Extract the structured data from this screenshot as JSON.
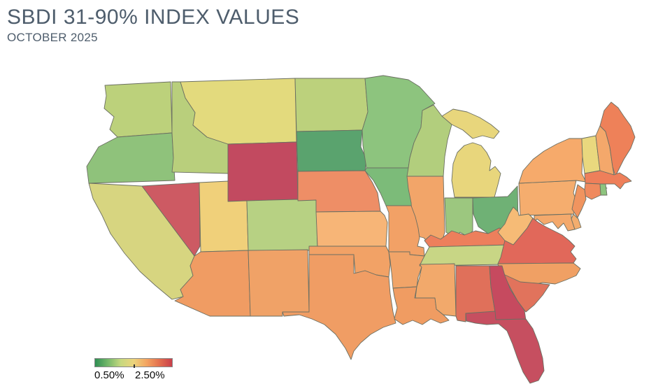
{
  "header": {
    "title": "SBDI 31-90% INDEX VALUES",
    "subtitle": "OCTOBER 2025",
    "title_color": "#4e5d6c"
  },
  "legend": {
    "min_label": "0.50%",
    "max_label": "2.50%",
    "gradient": [
      "#2f8e53",
      "#74b86a",
      "#c6d87f",
      "#ecd47c",
      "#f3a561",
      "#e3704f",
      "#c93f4a"
    ],
    "tick_position_pct": 50
  },
  "chart_data": {
    "type": "heatmap",
    "subtype": "us-state-choropleth",
    "title": "SBDI 31-90% INDEX VALUES",
    "subtitle": "OCTOBER 2025",
    "legend": {
      "min": "0.50%",
      "max": "2.50%",
      "position": "bottom-left"
    },
    "scale": {
      "min_pct": 0.5,
      "max_pct": 2.5,
      "low_color": "#2f8e53",
      "mid_color": "#ecd47c",
      "high_color": "#c93f4a"
    },
    "states": [
      {
        "abbr": "WA",
        "name": "Washington",
        "color": "#bcd17b",
        "value_est_pct": 1.25
      },
      {
        "abbr": "OR",
        "name": "Oregon",
        "color": "#8fc27b",
        "value_est_pct": 1.05
      },
      {
        "abbr": "CA",
        "name": "California",
        "color": "#d7d580",
        "value_est_pct": 1.45
      },
      {
        "abbr": "NV",
        "name": "Nevada",
        "color": "#cd5a63",
        "value_est_pct": 2.3
      },
      {
        "abbr": "ID",
        "name": "Idaho",
        "color": "#b9cf7c",
        "value_est_pct": 1.25
      },
      {
        "abbr": "MT",
        "name": "Montana",
        "color": "#e3da7d",
        "value_est_pct": 1.45
      },
      {
        "abbr": "WY",
        "name": "Wyoming",
        "color": "#c24a60",
        "value_est_pct": 2.45
      },
      {
        "abbr": "UT",
        "name": "Utah",
        "color": "#f0d07a",
        "value_est_pct": 1.55
      },
      {
        "abbr": "CO",
        "name": "Colorado",
        "color": "#b7d183",
        "value_est_pct": 1.25
      },
      {
        "abbr": "AZ",
        "name": "Arizona",
        "color": "#f09c63",
        "value_est_pct": 1.95
      },
      {
        "abbr": "NM",
        "name": "New Mexico",
        "color": "#f0a267",
        "value_est_pct": 1.9
      },
      {
        "abbr": "ND",
        "name": "North Dakota",
        "color": "#bcd17c",
        "value_est_pct": 1.25
      },
      {
        "abbr": "SD",
        "name": "South Dakota",
        "color": "#5aa36e",
        "value_est_pct": 0.75
      },
      {
        "abbr": "NE",
        "name": "Nebraska",
        "color": "#ee8e66",
        "value_est_pct": 2.1
      },
      {
        "abbr": "KS",
        "name": "Kansas",
        "color": "#f7b577",
        "value_est_pct": 1.65
      },
      {
        "abbr": "OK",
        "name": "Oklahoma",
        "color": "#f2a266",
        "value_est_pct": 1.9
      },
      {
        "abbr": "TX",
        "name": "Texas",
        "color": "#f09d64",
        "value_est_pct": 1.95
      },
      {
        "abbr": "MN",
        "name": "Minnesota",
        "color": "#8dc47e",
        "value_est_pct": 1.1
      },
      {
        "abbr": "IA",
        "name": "Iowa",
        "color": "#7cbb79",
        "value_est_pct": 1.0
      },
      {
        "abbr": "WI",
        "name": "Wisconsin",
        "color": "#b2ce7d",
        "value_est_pct": 1.25
      },
      {
        "abbr": "IL",
        "name": "Illinois",
        "color": "#f2a569",
        "value_est_pct": 1.85
      },
      {
        "abbr": "MO",
        "name": "Missouri",
        "color": "#f2a166",
        "value_est_pct": 1.9
      },
      {
        "abbr": "AR",
        "name": "Arkansas",
        "color": "#f1a468",
        "value_est_pct": 1.85
      },
      {
        "abbr": "LA",
        "name": "Louisiana",
        "color": "#f09c62",
        "value_est_pct": 1.95
      },
      {
        "abbr": "MI",
        "name": "Michigan",
        "color": "#e8d67c",
        "value_est_pct": 1.5
      },
      {
        "abbr": "IN",
        "name": "Indiana",
        "color": "#9cc77f",
        "value_est_pct": 1.1
      },
      {
        "abbr": "OH",
        "name": "Ohio",
        "color": "#6fb175",
        "value_est_pct": 0.9
      },
      {
        "abbr": "KY",
        "name": "Kentucky",
        "color": "#ed7f5c",
        "value_est_pct": 2.05
      },
      {
        "abbr": "TN",
        "name": "Tennessee",
        "color": "#c8d685",
        "value_est_pct": 1.35
      },
      {
        "abbr": "MS",
        "name": "Mississippi",
        "color": "#f2a96b",
        "value_est_pct": 1.8
      },
      {
        "abbr": "AL",
        "name": "Alabama",
        "color": "#e0705a",
        "value_est_pct": 2.2
      },
      {
        "abbr": "GA",
        "name": "Georgia",
        "color": "#c64a5f",
        "value_est_pct": 2.45
      },
      {
        "abbr": "FL",
        "name": "Florida",
        "color": "#c64f60",
        "value_est_pct": 2.45
      },
      {
        "abbr": "SC",
        "name": "South Carolina",
        "color": "#e1735c",
        "value_est_pct": 2.2
      },
      {
        "abbr": "NC",
        "name": "North Carolina",
        "color": "#f0a064",
        "value_est_pct": 1.9
      },
      {
        "abbr": "VA",
        "name": "Virginia",
        "color": "#e1685a",
        "value_est_pct": 2.25
      },
      {
        "abbr": "WV",
        "name": "West Virginia",
        "color": "#f6bb76",
        "value_est_pct": 1.6
      },
      {
        "abbr": "MD",
        "name": "Maryland",
        "color": "#f4a96c",
        "value_est_pct": 1.8
      },
      {
        "abbr": "DE",
        "name": "Delaware",
        "color": "#f3ad6e",
        "value_est_pct": 1.75
      },
      {
        "abbr": "PA",
        "name": "Pennsylvania",
        "color": "#f5ad6e",
        "value_est_pct": 1.75
      },
      {
        "abbr": "NJ",
        "name": "New Jersey",
        "color": "#f0945f",
        "value_est_pct": 2.0
      },
      {
        "abbr": "NY",
        "name": "New York",
        "color": "#f6aa6b",
        "value_est_pct": 1.8
      },
      {
        "abbr": "CT",
        "name": "Connecticut",
        "color": "#ef8a5e",
        "value_est_pct": 2.0
      },
      {
        "abbr": "RI",
        "name": "Rhode Island",
        "color": "#8dc47e",
        "value_est_pct": 1.0
      },
      {
        "abbr": "MA",
        "name": "Massachusetts",
        "color": "#ee7f5a",
        "value_est_pct": 2.05
      },
      {
        "abbr": "VT",
        "name": "Vermont",
        "color": "#e9d87e",
        "value_est_pct": 1.5
      },
      {
        "abbr": "NH",
        "name": "New Hampshire",
        "color": "#f4a86b",
        "value_est_pct": 1.8
      },
      {
        "abbr": "ME",
        "name": "Maine",
        "color": "#ee8159",
        "value_est_pct": 2.05
      }
    ]
  }
}
